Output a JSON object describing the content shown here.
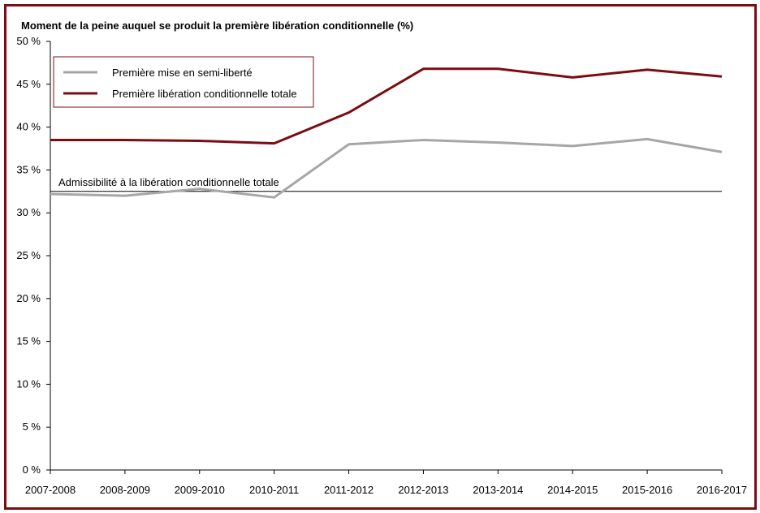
{
  "chart_data": {
    "type": "line",
    "title": "Moment de la peine auquel se produit la première libération conditionnelle (%)",
    "xlabel": "",
    "ylabel": "",
    "categories": [
      "2007-2008",
      "2008-2009",
      "2009-2010",
      "2010-2011",
      "2011-2012",
      "2012-2013",
      "2013-2014",
      "2014-2015",
      "2015-2016",
      "2016-2017"
    ],
    "ylim": [
      0,
      50
    ],
    "yticks": [
      0,
      5,
      10,
      15,
      20,
      25,
      30,
      35,
      40,
      45,
      50
    ],
    "ytick_labels": [
      "0 %",
      "5 %",
      "10 %",
      "15 %",
      "20 %",
      "25 %",
      "30 %",
      "35 %",
      "40 %",
      "45 %",
      "50 %"
    ],
    "grid": false,
    "legend_position": "top-left",
    "series": [
      {
        "name": "Première mise en semi-liberté",
        "color": "#a6a6a6",
        "values": [
          32.2,
          32.0,
          32.8,
          31.8,
          38.0,
          38.5,
          38.2,
          37.8,
          38.6,
          37.1
        ]
      },
      {
        "name": "Première libération conditionnelle totale",
        "color": "#7b0d12",
        "values": [
          38.5,
          38.5,
          38.4,
          38.1,
          41.7,
          46.8,
          46.8,
          45.8,
          46.7,
          45.9
        ]
      }
    ],
    "reference_line": {
      "label": "Admissibilité à la libération conditionnelle totale",
      "value": 32.5,
      "color": "#000000"
    }
  }
}
